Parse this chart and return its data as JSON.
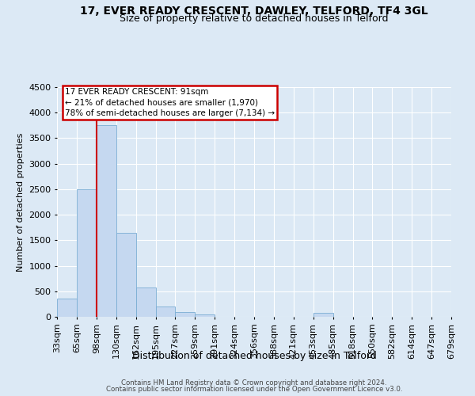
{
  "title": "17, EVER READY CRESCENT, DAWLEY, TELFORD, TF4 3GL",
  "subtitle": "Size of property relative to detached houses in Telford",
  "xlabel": "Distribution of detached houses by size in Telford",
  "ylabel": "Number of detached properties",
  "bin_labels": [
    "33sqm",
    "65sqm",
    "98sqm",
    "130sqm",
    "162sqm",
    "195sqm",
    "227sqm",
    "259sqm",
    "291sqm",
    "324sqm",
    "356sqm",
    "388sqm",
    "421sqm",
    "453sqm",
    "485sqm",
    "518sqm",
    "550sqm",
    "582sqm",
    "614sqm",
    "647sqm",
    "679sqm"
  ],
  "bar_values": [
    350,
    2500,
    3750,
    1650,
    580,
    200,
    100,
    50,
    0,
    0,
    0,
    0,
    0,
    80,
    0,
    0,
    0,
    0,
    0,
    0
  ],
  "bar_color": "#c5d8f0",
  "bar_edge_color": "#7aadd4",
  "annotation_title": "17 EVER READY CRESCENT: 91sqm",
  "annotation_line1": "← 21% of detached houses are smaller (1,970)",
  "annotation_line2": "78% of semi-detached houses are larger (7,134) →",
  "annotation_box_color": "#cc0000",
  "vline_color": "#cc0000",
  "ylim": [
    0,
    4500
  ],
  "yticks": [
    0,
    500,
    1000,
    1500,
    2000,
    2500,
    3000,
    3500,
    4000,
    4500
  ],
  "footer1": "Contains HM Land Registry data © Crown copyright and database right 2024.",
  "footer2": "Contains public sector information licensed under the Open Government Licence v3.0.",
  "bg_color": "#dce9f5",
  "plot_bg_color": "#dce9f5",
  "grid_color": "#c8d8ea",
  "title_fontsize": 10,
  "subtitle_fontsize": 9,
  "vline_x_bin": 2.0
}
